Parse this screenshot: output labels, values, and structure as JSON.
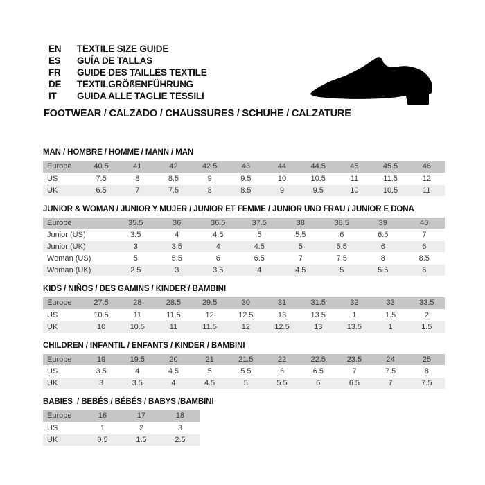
{
  "header": {
    "languages": [
      {
        "code": "EN",
        "text": "TEXTILE SIZE GUIDE"
      },
      {
        "code": "ES",
        "text": "GUÍA DE TALLAS"
      },
      {
        "code": "FR",
        "text": "GUIDE DES TAILLES TEXTILE"
      },
      {
        "code": "DE",
        "text": "TEXTILGRÖßENFÜHRUNG"
      },
      {
        "code": "IT",
        "text": "GUIDA ALLE TAGLIE TESSILI"
      }
    ],
    "category_title": "FOOTWEAR / CALZADO / CHAUSSURES / SCHUHE / CALZATURE",
    "shoe_icon": "shoe-silhouette"
  },
  "colors": {
    "header_row_bg": "#c6c6c6",
    "alt_row_bg": "#ededed",
    "white_row_bg": "#ffffff",
    "text": "#3a3a3a",
    "title_text": "#111111",
    "shoe_fill": "#000000"
  },
  "tables": [
    {
      "title": "MAN / HOMBRE / HOMME / MANN / MAN",
      "rows": [
        {
          "label": "Europe",
          "values": [
            "40.5",
            "41",
            "42",
            "42.5",
            "43",
            "44",
            "44.5",
            "45",
            "45.5",
            "46"
          ]
        },
        {
          "label": "US",
          "values": [
            "7.5",
            "8",
            "8.5",
            "9",
            "9.5",
            "10",
            "10.5",
            "11",
            "11.5",
            "12"
          ]
        },
        {
          "label": "UK",
          "values": [
            "6.5",
            "7",
            "7.5",
            "8",
            "8.5",
            "9",
            "9.5",
            "10",
            "10.5",
            "11"
          ]
        }
      ]
    },
    {
      "title": "JUNIOR & WOMAN / JUNIOR Y MUJER / JUNIOR ET FEMME / JUNIOR UND FRAU / JUNIOR E DONA",
      "rows": [
        {
          "label": "Europe",
          "values": [
            "35.5",
            "36",
            "36.5",
            "37.5",
            "38",
            "38.5",
            "39",
            "40"
          ]
        },
        {
          "label": "Junior (US)",
          "values": [
            "3.5",
            "4",
            "4.5",
            "5",
            "5.5",
            "6",
            "6.5",
            "7"
          ]
        },
        {
          "label": "Junior (UK)",
          "values": [
            "3",
            "3.5",
            "4",
            "4.5",
            "5",
            "5.5",
            "6",
            "6"
          ]
        },
        {
          "label": "Woman (US)",
          "values": [
            "5",
            "5.5",
            "6",
            "6.5",
            "7",
            "7.5",
            "8",
            "8.5"
          ]
        },
        {
          "label": "Woman (UK)",
          "values": [
            "2.5",
            "3",
            "3.5",
            "4",
            "4.5",
            "5",
            "5.5",
            "6"
          ]
        }
      ]
    },
    {
      "title": "KIDS / NIÑOS / DES GAMINS / KINDER / BAMBINI",
      "rows": [
        {
          "label": "Europe",
          "values": [
            "27.5",
            "28",
            "28.5",
            "29.5",
            "30",
            "31",
            "31.5",
            "32",
            "33",
            "33.5"
          ]
        },
        {
          "label": "US",
          "values": [
            "10.5",
            "11",
            "11.5",
            "12",
            "12.5",
            "13",
            "13.5",
            "1",
            "1.5",
            "2"
          ]
        },
        {
          "label": "UK",
          "values": [
            "10",
            "10.5",
            "11",
            "11.5",
            "12",
            "12.5",
            "13",
            "13.5",
            "1",
            "1.5"
          ]
        }
      ]
    },
    {
      "title": "CHILDREN / INFANTIL / ENFANTS / KINDER / BAMBINI",
      "rows": [
        {
          "label": "Europe",
          "values": [
            "19",
            "19.5",
            "20",
            "21",
            "21.5",
            "22",
            "22.5",
            "23.5",
            "24",
            "25"
          ]
        },
        {
          "label": "US",
          "values": [
            "3.5",
            "4",
            "4.5",
            "5",
            "5.5",
            "6",
            "6.5",
            "7",
            "7.5",
            "8"
          ]
        },
        {
          "label": "UK",
          "values": [
            "3",
            "3.5",
            "4",
            "4.5",
            "5",
            "5.5",
            "6",
            "6.5",
            "7",
            "7.5"
          ]
        }
      ]
    },
    {
      "title": "BABIES  / BEBÉS / BÉBÉS / BABYS /BAMBINI",
      "rows": [
        {
          "label": "Europe",
          "values": [
            "16",
            "17",
            "18"
          ]
        },
        {
          "label": "US",
          "values": [
            "1",
            "2",
            "3"
          ]
        },
        {
          "label": "UK",
          "values": [
            "0.5",
            "1.5",
            "2.5"
          ]
        }
      ]
    }
  ]
}
